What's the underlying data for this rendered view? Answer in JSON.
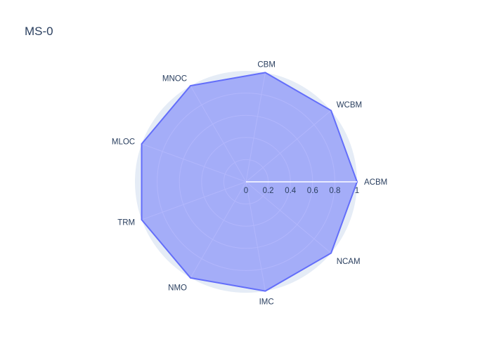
{
  "chart_data": {
    "type": "radar",
    "title": "MS-0",
    "categories": [
      "ACBM",
      "WCBM",
      "CBM",
      "MNOC",
      "MLOC",
      "TRM",
      "NMO",
      "IMC",
      "NCAM"
    ],
    "series": [
      {
        "values": [
          1,
          1,
          1,
          1,
          1,
          1,
          1,
          1,
          1
        ]
      }
    ],
    "radial_range": [
      0,
      1
    ],
    "radial_ticks": [
      "0",
      "0.2",
      "0.4",
      "0.6",
      "0.8",
      "1"
    ],
    "grid": true,
    "colors": {
      "fill": "#636efa",
      "line": "#636efa",
      "polar_bg": "#e5ecf6",
      "grid": "#ffffff",
      "text": "#2a3f5f"
    }
  }
}
